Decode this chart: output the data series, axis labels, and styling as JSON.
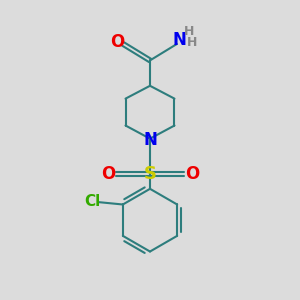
{
  "bg_color": "#dcdcdc",
  "bond_color": "#2d7d7d",
  "N_color": "#0000ee",
  "O_color": "#ee0000",
  "S_color": "#cccc00",
  "Cl_color": "#33aa00",
  "H_color": "#888888",
  "bond_width": 1.5,
  "font_size": 11,
  "fig_w": 3.0,
  "fig_h": 3.0,
  "dpi": 100,
  "xlim": [
    0,
    10
  ],
  "ylim": [
    0,
    10
  ]
}
